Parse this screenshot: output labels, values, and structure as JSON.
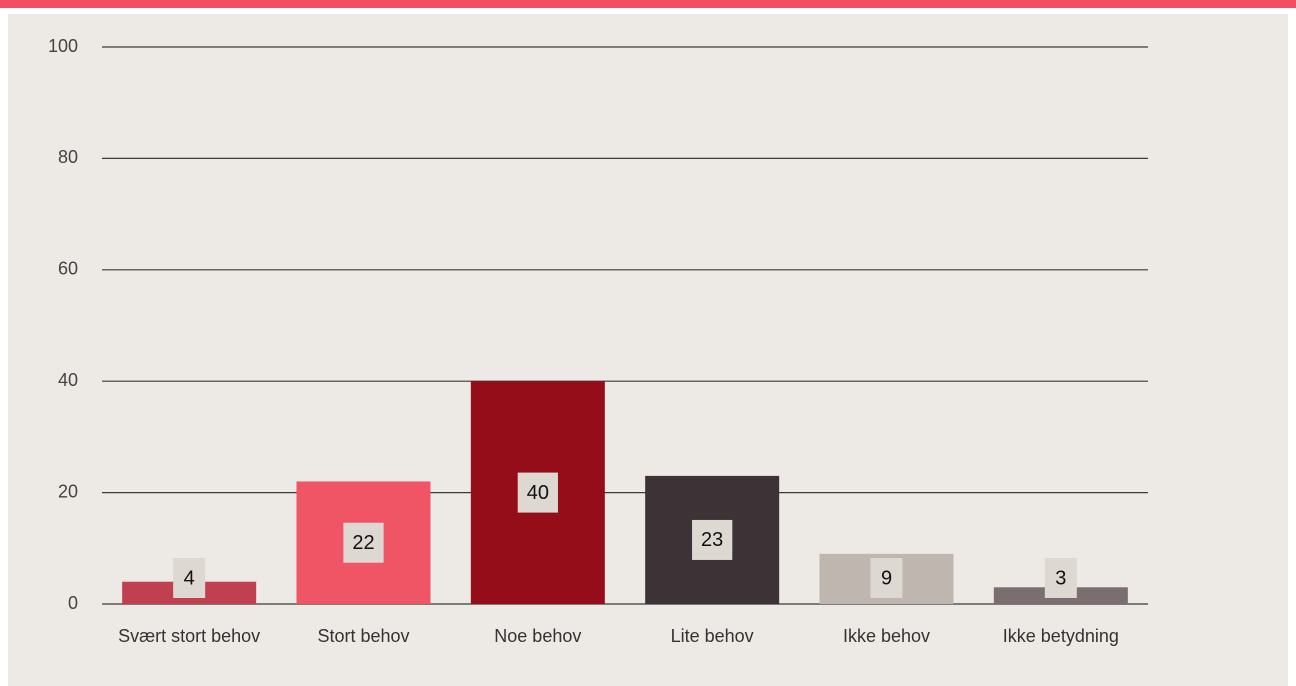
{
  "chart_data": {
    "type": "bar",
    "categories": [
      "Svært stort behov",
      "Stort behov",
      "Noe behov",
      "Lite behov",
      "Ikke behov",
      "Ikke betydning"
    ],
    "values": [
      4,
      22,
      40,
      23,
      9,
      3
    ],
    "colors": [
      "#c0404f",
      "#f05565",
      "#950d18",
      "#3d3336",
      "#c0b6b0",
      "#7a6e70"
    ],
    "ylim": [
      0,
      100
    ],
    "yticks": [
      0,
      20,
      40,
      60,
      80,
      100
    ],
    "grid": true
  }
}
